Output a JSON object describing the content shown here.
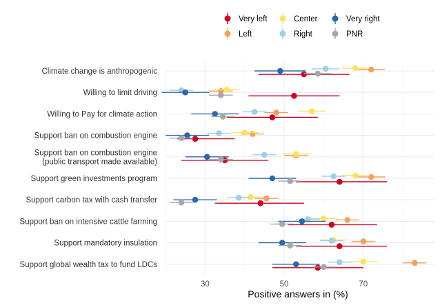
{
  "chart_data": {
    "type": "dot-errorbar",
    "xlabel": "Positive answers in (%)",
    "ylabel": "",
    "xlim": [
      20,
      88
    ],
    "xticks": [
      30,
      50,
      70
    ],
    "grid": true,
    "legend_position": "top",
    "categories": [
      "Climate change is anthropogenic",
      "Willing to limit driving",
      "Willing to Pay for climate action",
      "Support ban on combustion engine",
      "Support ban on combustion engine\n(public transport made available)",
      "Support green investments program",
      "Support carbon tax with cash transfer",
      "Support ban on intensive cattle farming",
      "Support mandatory insulation",
      "Support global wealth tax to fund LDCs"
    ],
    "series": [
      {
        "name": "Very left",
        "color": "#ca0020",
        "values": [
          55,
          52.5,
          47,
          27.5,
          35,
          64,
          44,
          62,
          64,
          58.5
        ],
        "ci_low": [
          43.5,
          41,
          35.5,
          23,
          24,
          53,
          32.5,
          51,
          53,
          47
        ],
        "ci_high": [
          66.5,
          64,
          58.5,
          37.5,
          46,
          76,
          55,
          73.5,
          76,
          70
        ]
      },
      {
        "name": "Left",
        "color": "#f4a15d",
        "values": [
          72,
          34,
          48,
          42,
          53,
          72,
          45.5,
          66,
          70,
          83
        ],
        "ci_low": [
          68.5,
          31,
          45,
          39,
          50,
          68.5,
          42.5,
          63,
          67,
          80
        ],
        "ci_high": [
          75.5,
          37,
          51,
          45,
          56,
          75.5,
          48.5,
          69,
          73,
          86
        ]
      },
      {
        "name": "Center",
        "color": "#f7e467",
        "values": [
          68,
          35.5,
          57,
          40,
          53,
          68,
          41.5,
          60,
          62.5,
          70
        ],
        "ci_low": [
          64.5,
          32.5,
          53.5,
          36.5,
          49.5,
          64.5,
          38,
          56.5,
          59,
          66.5
        ],
        "ci_high": [
          71.5,
          38.5,
          60.5,
          43.5,
          56.5,
          71.5,
          45,
          63.5,
          66,
          73.5
        ]
      },
      {
        "name": "Right",
        "color": "#9ecfe6",
        "values": [
          60.5,
          24,
          42.5,
          33.5,
          45,
          62.5,
          38.5,
          56,
          62,
          64
        ],
        "ci_low": [
          57,
          21,
          39.5,
          30.5,
          42,
          59.5,
          35.5,
          53,
          59,
          61
        ],
        "ci_high": [
          64,
          27,
          45.5,
          36.5,
          48,
          65.5,
          41.5,
          59,
          65,
          67
        ]
      },
      {
        "name": "Very right",
        "color": "#2b67a9",
        "values": [
          49,
          25,
          32.5,
          25.5,
          30.5,
          47,
          27.5,
          54.5,
          49.5,
          53
        ],
        "ci_low": [
          42.5,
          19,
          26.5,
          20,
          25,
          41,
          22,
          48.5,
          43.5,
          47
        ],
        "ci_high": [
          55.5,
          31,
          38.5,
          31,
          36,
          53,
          33,
          60.5,
          55.5,
          59
        ]
      },
      {
        "name": "PNR",
        "color": "#a8a8a8",
        "values": [
          58.5,
          34,
          34.5,
          24,
          34,
          51.5,
          24,
          49.5,
          51.5,
          60
        ],
        "ci_low": [
          55,
          31,
          31.5,
          21,
          31,
          48.5,
          21,
          46.5,
          48.5,
          57
        ],
        "ci_high": [
          62,
          37,
          37.5,
          27,
          37,
          54.5,
          27,
          52.5,
          54.5,
          63
        ]
      }
    ]
  }
}
